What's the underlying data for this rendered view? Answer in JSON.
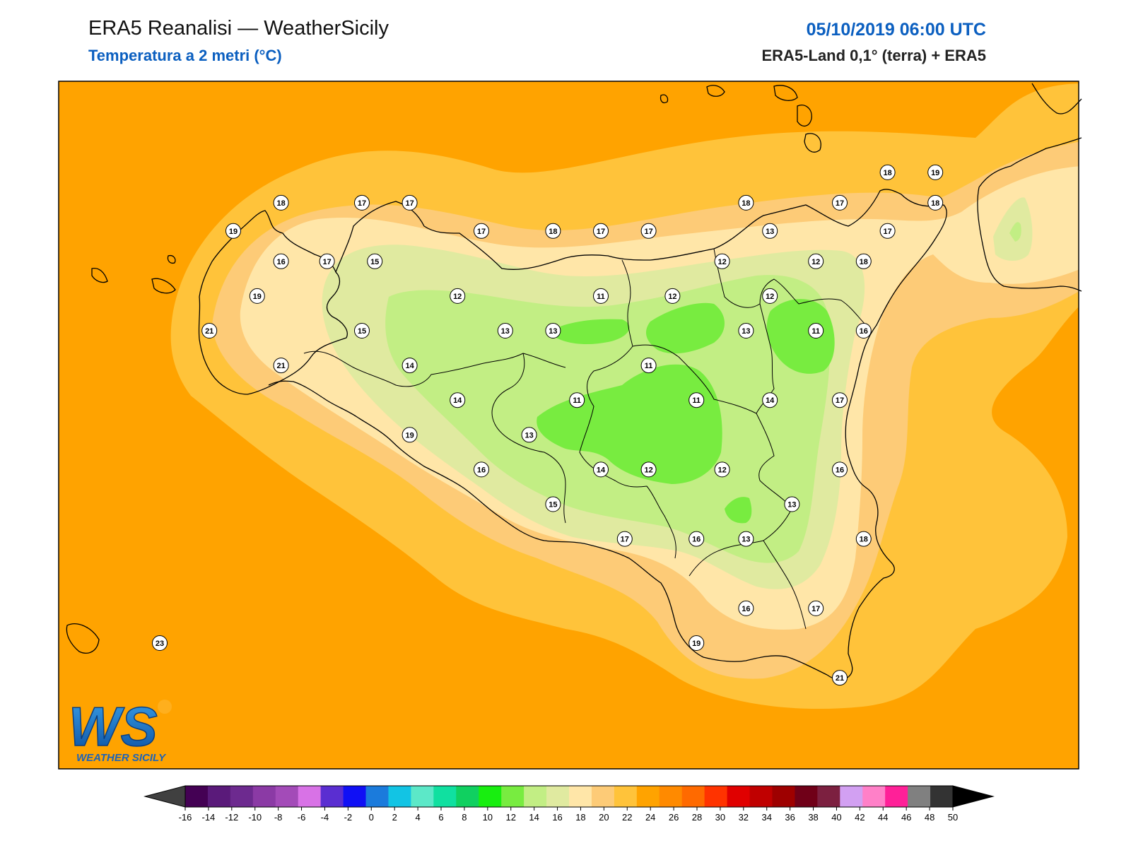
{
  "header": {
    "title": "ERA5 Reanalisi — WeatherSicily",
    "subtitle": "Temperatura a 2 metri (°C)",
    "datetime": "05/10/2019 06:00 UTC",
    "source": "ERA5-Land 0,1° (terra) + ERA5"
  },
  "logo": {
    "letters": "WS",
    "text": "WEATHER SICILY"
  },
  "map_data": {
    "variable": "2 m temperature",
    "unit": "°C",
    "stations": [
      {
        "v": "18",
        "lon": 12.66,
        "lat": 38.16
      },
      {
        "v": "17",
        "lon": 13.1,
        "lat": 38.16
      },
      {
        "v": "17",
        "lon": 13.36,
        "lat": 38.16
      },
      {
        "v": "19",
        "lon": 12.4,
        "lat": 38.03
      },
      {
        "v": "16",
        "lon": 12.66,
        "lat": 37.89
      },
      {
        "v": "17",
        "lon": 12.91,
        "lat": 37.89
      },
      {
        "v": "15",
        "lon": 13.17,
        "lat": 37.89
      },
      {
        "v": "19",
        "lon": 12.53,
        "lat": 37.73
      },
      {
        "v": "21",
        "lon": 12.27,
        "lat": 37.57
      },
      {
        "v": "21",
        "lon": 12.66,
        "lat": 37.41
      },
      {
        "v": "17",
        "lon": 13.75,
        "lat": 38.03
      },
      {
        "v": "18",
        "lon": 14.14,
        "lat": 38.03
      },
      {
        "v": "17",
        "lon": 14.4,
        "lat": 38.03
      },
      {
        "v": "17",
        "lon": 14.66,
        "lat": 38.03
      },
      {
        "v": "18",
        "lon": 15.19,
        "lat": 38.16
      },
      {
        "v": "17",
        "lon": 15.7,
        "lat": 38.16
      },
      {
        "v": "18",
        "lon": 15.96,
        "lat": 38.3
      },
      {
        "v": "19",
        "lon": 16.22,
        "lat": 38.3
      },
      {
        "v": "18",
        "lon": 16.22,
        "lat": 38.16
      },
      {
        "v": "13",
        "lon": 15.32,
        "lat": 38.03
      },
      {
        "v": "17",
        "lon": 15.96,
        "lat": 38.03
      },
      {
        "v": "12",
        "lon": 15.06,
        "lat": 37.89
      },
      {
        "v": "12",
        "lon": 15.57,
        "lat": 37.89
      },
      {
        "v": "18",
        "lon": 15.83,
        "lat": 37.89
      },
      {
        "v": "12",
        "lon": 13.62,
        "lat": 37.73
      },
      {
        "v": "11",
        "lon": 14.4,
        "lat": 37.73
      },
      {
        "v": "12",
        "lon": 14.79,
        "lat": 37.73
      },
      {
        "v": "12",
        "lon": 15.32,
        "lat": 37.73
      },
      {
        "v": "15",
        "lon": 13.1,
        "lat": 37.57
      },
      {
        "v": "13",
        "lon": 13.88,
        "lat": 37.57
      },
      {
        "v": "13",
        "lon": 14.14,
        "lat": 37.57
      },
      {
        "v": "13",
        "lon": 15.19,
        "lat": 37.57
      },
      {
        "v": "11",
        "lon": 15.57,
        "lat": 37.57
      },
      {
        "v": "16",
        "lon": 15.83,
        "lat": 37.57
      },
      {
        "v": "14",
        "lon": 13.36,
        "lat": 37.41
      },
      {
        "v": "11",
        "lon": 14.66,
        "lat": 37.41
      },
      {
        "v": "14",
        "lon": 13.62,
        "lat": 37.25
      },
      {
        "v": "11",
        "lon": 14.27,
        "lat": 37.25
      },
      {
        "v": "11",
        "lon": 14.92,
        "lat": 37.25
      },
      {
        "v": "14",
        "lon": 15.32,
        "lat": 37.25
      },
      {
        "v": "17",
        "lon": 15.7,
        "lat": 37.25
      },
      {
        "v": "19",
        "lon": 13.36,
        "lat": 37.09
      },
      {
        "v": "13",
        "lon": 14.01,
        "lat": 37.09
      },
      {
        "v": "16",
        "lon": 13.75,
        "lat": 36.93
      },
      {
        "v": "14",
        "lon": 14.4,
        "lat": 36.93
      },
      {
        "v": "12",
        "lon": 14.66,
        "lat": 36.93
      },
      {
        "v": "12",
        "lon": 15.06,
        "lat": 36.93
      },
      {
        "v": "16",
        "lon": 15.7,
        "lat": 36.93
      },
      {
        "v": "15",
        "lon": 14.14,
        "lat": 36.77
      },
      {
        "v": "13",
        "lon": 15.44,
        "lat": 36.77
      },
      {
        "v": "17",
        "lon": 14.53,
        "lat": 36.61
      },
      {
        "v": "16",
        "lon": 14.92,
        "lat": 36.61
      },
      {
        "v": "13",
        "lon": 15.19,
        "lat": 36.61
      },
      {
        "v": "18",
        "lon": 15.83,
        "lat": 36.61
      },
      {
        "v": "16",
        "lon": 15.19,
        "lat": 36.29
      },
      {
        "v": "17",
        "lon": 15.57,
        "lat": 36.29
      },
      {
        "v": "19",
        "lon": 14.92,
        "lat": 36.13
      },
      {
        "v": "21",
        "lon": 15.7,
        "lat": 35.97
      },
      {
        "v": "23",
        "lon": 12.0,
        "lat": 36.13
      }
    ]
  },
  "colorbar": {
    "ticks": [
      "-16",
      "-14",
      "-12",
      "-10",
      "-8",
      "-6",
      "-4",
      "-2",
      "0",
      "2",
      "4",
      "6",
      "8",
      "10",
      "12",
      "14",
      "16",
      "18",
      "20",
      "22",
      "24",
      "26",
      "28",
      "30",
      "32",
      "34",
      "36",
      "38",
      "40",
      "42",
      "44",
      "46",
      "48",
      "50"
    ],
    "colors": [
      "#440154",
      "#5a1a7a",
      "#6d2a8f",
      "#8b3aa5",
      "#a34bb8",
      "#d872e6",
      "#5a2ed1",
      "#1010f5",
      "#1b7bdc",
      "#12c4e4",
      "#5ce8c8",
      "#10e0a0",
      "#10d060",
      "#18ee10",
      "#78ec40",
      "#c2ee84",
      "#e0eaa0",
      "#ffe6a8",
      "#fdcb77",
      "#ffc33a",
      "#ffa300",
      "#ff8a00",
      "#ff6a00",
      "#ff3300",
      "#e00000",
      "#c00000",
      "#9e0000",
      "#700018",
      "#7c2040",
      "#d2a0f2",
      "#ff80c8",
      "#ff2098",
      "#808080",
      "#333333"
    ],
    "under_color": "#404040",
    "over_color": "#000000"
  }
}
